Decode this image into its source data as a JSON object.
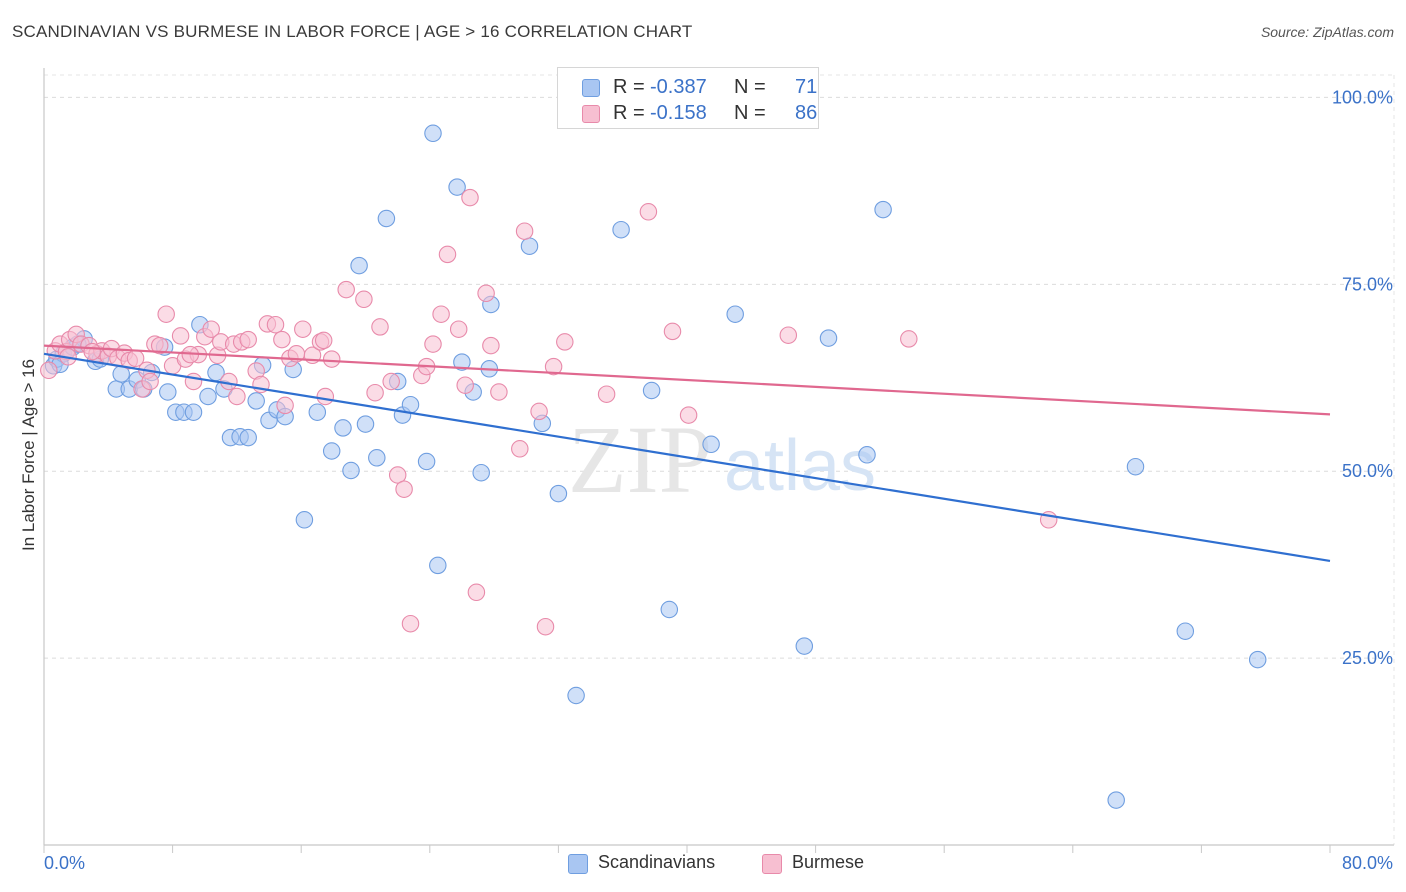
{
  "title": "SCANDINAVIAN VS BURMESE IN LABOR FORCE | AGE > 16 CORRELATION CHART",
  "source": "Source: ZipAtlas.com",
  "legend_top": {
    "rows": [
      {
        "r_key": "R =",
        "r_value": "-0.387",
        "n_key": "N =",
        "n_value": "71",
        "color": "#a9c6f2",
        "border": "#6f9ee0"
      },
      {
        "r_key": "R =",
        "r_value": "-0.158",
        "n_key": "N =",
        "n_value": "86",
        "color": "#f7bfd1",
        "border": "#e88aaa"
      }
    ]
  },
  "bottom_legend": {
    "items": [
      {
        "label": "Scandinavians",
        "color": "#a9c6f2",
        "border": "#6f9ee0"
      },
      {
        "label": "Burmese",
        "color": "#f7bfd1",
        "border": "#e88aaa"
      }
    ]
  },
  "watermark": {
    "zip": "ZIP",
    "atlas": "atlas"
  },
  "chart_data": {
    "type": "scatter",
    "title": "SCANDINAVIAN VS BURMESE IN LABOR FORCE | AGE > 16 CORRELATION CHART",
    "xlabel": "",
    "ylabel": "In Labor Force | Age > 16",
    "xlim": [
      0,
      80
    ],
    "ylim": [
      0,
      103
    ],
    "x_tick_labels": [
      {
        "value": 0,
        "label": "0.0%"
      },
      {
        "value": 80,
        "label": "80.0%"
      }
    ],
    "y_tick_labels": [
      {
        "value": 25,
        "label": "25.0%"
      },
      {
        "value": 50,
        "label": "50.0%"
      },
      {
        "value": 75,
        "label": "75.0%"
      },
      {
        "value": 100,
        "label": "100.0%"
      }
    ],
    "grid": true,
    "legend_position": "bottom",
    "series": [
      {
        "name": "Scandinavians",
        "color": "#6f9ee0",
        "fill": "#a9c6f2",
        "line_color": "#2f6fd0",
        "trend": {
          "x": [
            0,
            80
          ],
          "y": [
            65.7,
            38.0
          ]
        },
        "points": [
          [
            0.6,
            64.1
          ],
          [
            0.8,
            65.0
          ],
          [
            1.2,
            65.7
          ],
          [
            1.8,
            66.6
          ],
          [
            2.5,
            67.7
          ],
          [
            3.2,
            64.7
          ],
          [
            3.5,
            65.0
          ],
          [
            4.5,
            61.0
          ],
          [
            4.8,
            63.0
          ],
          [
            5.3,
            61.0
          ],
          [
            5.8,
            62.2
          ],
          [
            6.2,
            61.0
          ],
          [
            6.7,
            63.2
          ],
          [
            7.5,
            66.6
          ],
          [
            7.7,
            60.6
          ],
          [
            8.2,
            57.9
          ],
          [
            8.7,
            57.9
          ],
          [
            9.3,
            57.9
          ],
          [
            9.7,
            69.6
          ],
          [
            10.2,
            60.0
          ],
          [
            10.7,
            63.2
          ],
          [
            11.2,
            61.0
          ],
          [
            11.6,
            54.5
          ],
          [
            12.2,
            54.6
          ],
          [
            12.7,
            54.5
          ],
          [
            13.2,
            59.4
          ],
          [
            13.6,
            64.2
          ],
          [
            14.0,
            56.8
          ],
          [
            14.5,
            58.2
          ],
          [
            15.0,
            57.3
          ],
          [
            15.5,
            63.6
          ],
          [
            16.2,
            43.5
          ],
          [
            17.0,
            57.9
          ],
          [
            17.9,
            52.7
          ],
          [
            18.6,
            55.8
          ],
          [
            19.1,
            50.1
          ],
          [
            19.6,
            77.5
          ],
          [
            20.0,
            56.3
          ],
          [
            20.7,
            51.8
          ],
          [
            21.3,
            83.8
          ],
          [
            22.0,
            62.0
          ],
          [
            22.3,
            57.5
          ],
          [
            22.8,
            58.9
          ],
          [
            23.8,
            51.3
          ],
          [
            24.2,
            95.2
          ],
          [
            24.5,
            37.4
          ],
          [
            25.7,
            88.0
          ],
          [
            26.0,
            64.6
          ],
          [
            26.7,
            60.6
          ],
          [
            27.2,
            49.8
          ],
          [
            27.7,
            63.7
          ],
          [
            27.8,
            72.3
          ],
          [
            30.2,
            80.1
          ],
          [
            31.0,
            56.4
          ],
          [
            32.0,
            47.0
          ],
          [
            33.1,
            20.0
          ],
          [
            35.9,
            82.3
          ],
          [
            37.8,
            60.8
          ],
          [
            38.9,
            31.5
          ],
          [
            41.5,
            53.6
          ],
          [
            43.0,
            71.0
          ],
          [
            47.3,
            26.6
          ],
          [
            48.8,
            67.8
          ],
          [
            51.2,
            52.2
          ],
          [
            52.2,
            85.0
          ],
          [
            66.7,
            6.0
          ],
          [
            67.9,
            50.6
          ],
          [
            71.0,
            28.6
          ],
          [
            75.5,
            24.8
          ],
          [
            1.0,
            64.3
          ],
          [
            2.1,
            67.0
          ]
        ]
      },
      {
        "name": "Burmese",
        "color": "#e88aaa",
        "fill": "#f7bfd1",
        "line_color": "#e0688f",
        "trend": {
          "x": [
            0,
            80
          ],
          "y": [
            66.8,
            57.6
          ]
        },
        "points": [
          [
            0.3,
            63.5
          ],
          [
            0.7,
            66.1
          ],
          [
            1.0,
            67.0
          ],
          [
            1.4,
            66.0
          ],
          [
            1.6,
            67.6
          ],
          [
            2.0,
            68.3
          ],
          [
            2.3,
            67.0
          ],
          [
            2.8,
            66.8
          ],
          [
            3.3,
            65.7
          ],
          [
            3.6,
            66.1
          ],
          [
            4.0,
            65.4
          ],
          [
            4.2,
            66.4
          ],
          [
            4.6,
            65.1
          ],
          [
            5.0,
            65.8
          ],
          [
            5.3,
            64.8
          ],
          [
            5.7,
            65.1
          ],
          [
            6.1,
            61.0
          ],
          [
            6.4,
            63.5
          ],
          [
            6.9,
            67.0
          ],
          [
            7.2,
            66.8
          ],
          [
            7.6,
            71.0
          ],
          [
            8.0,
            64.1
          ],
          [
            8.5,
            68.1
          ],
          [
            8.8,
            65.0
          ],
          [
            9.3,
            62.0
          ],
          [
            9.6,
            65.6
          ],
          [
            10.0,
            68.0
          ],
          [
            10.4,
            69.0
          ],
          [
            10.8,
            65.5
          ],
          [
            11.0,
            67.3
          ],
          [
            11.5,
            62.0
          ],
          [
            11.8,
            67.0
          ],
          [
            12.3,
            67.3
          ],
          [
            12.7,
            67.6
          ],
          [
            13.2,
            63.4
          ],
          [
            13.5,
            61.6
          ],
          [
            13.9,
            69.7
          ],
          [
            14.4,
            69.6
          ],
          [
            14.8,
            67.6
          ],
          [
            15.3,
            65.1
          ],
          [
            15.7,
            65.7
          ],
          [
            16.1,
            69.0
          ],
          [
            16.7,
            65.5
          ],
          [
            17.2,
            67.3
          ],
          [
            17.4,
            67.5
          ],
          [
            17.9,
            65.0
          ],
          [
            18.8,
            74.3
          ],
          [
            19.9,
            73.0
          ],
          [
            20.9,
            69.3
          ],
          [
            21.6,
            62.0
          ],
          [
            22.0,
            49.5
          ],
          [
            22.4,
            47.6
          ],
          [
            22.8,
            29.6
          ],
          [
            23.5,
            62.8
          ],
          [
            23.8,
            64.0
          ],
          [
            24.2,
            67.0
          ],
          [
            24.7,
            71.0
          ],
          [
            25.1,
            79.0
          ],
          [
            25.8,
            69.0
          ],
          [
            26.5,
            86.6
          ],
          [
            26.9,
            33.8
          ],
          [
            27.5,
            73.8
          ],
          [
            27.8,
            66.8
          ],
          [
            28.3,
            60.6
          ],
          [
            29.6,
            53.0
          ],
          [
            29.9,
            82.1
          ],
          [
            31.2,
            29.2
          ],
          [
            31.7,
            64.0
          ],
          [
            32.4,
            67.3
          ],
          [
            37.6,
            84.7
          ],
          [
            39.1,
            68.7
          ],
          [
            40.1,
            57.5
          ],
          [
            46.3,
            68.2
          ],
          [
            53.8,
            67.7
          ],
          [
            62.5,
            43.5
          ],
          [
            1.5,
            65.3
          ],
          [
            3.0,
            66.0
          ],
          [
            6.6,
            62.0
          ],
          [
            9.1,
            65.6
          ],
          [
            12.0,
            60.0
          ],
          [
            15.0,
            58.8
          ],
          [
            17.5,
            60.0
          ],
          [
            20.6,
            60.5
          ],
          [
            26.2,
            61.5
          ],
          [
            30.8,
            58.0
          ],
          [
            35.0,
            60.3
          ]
        ]
      }
    ]
  }
}
